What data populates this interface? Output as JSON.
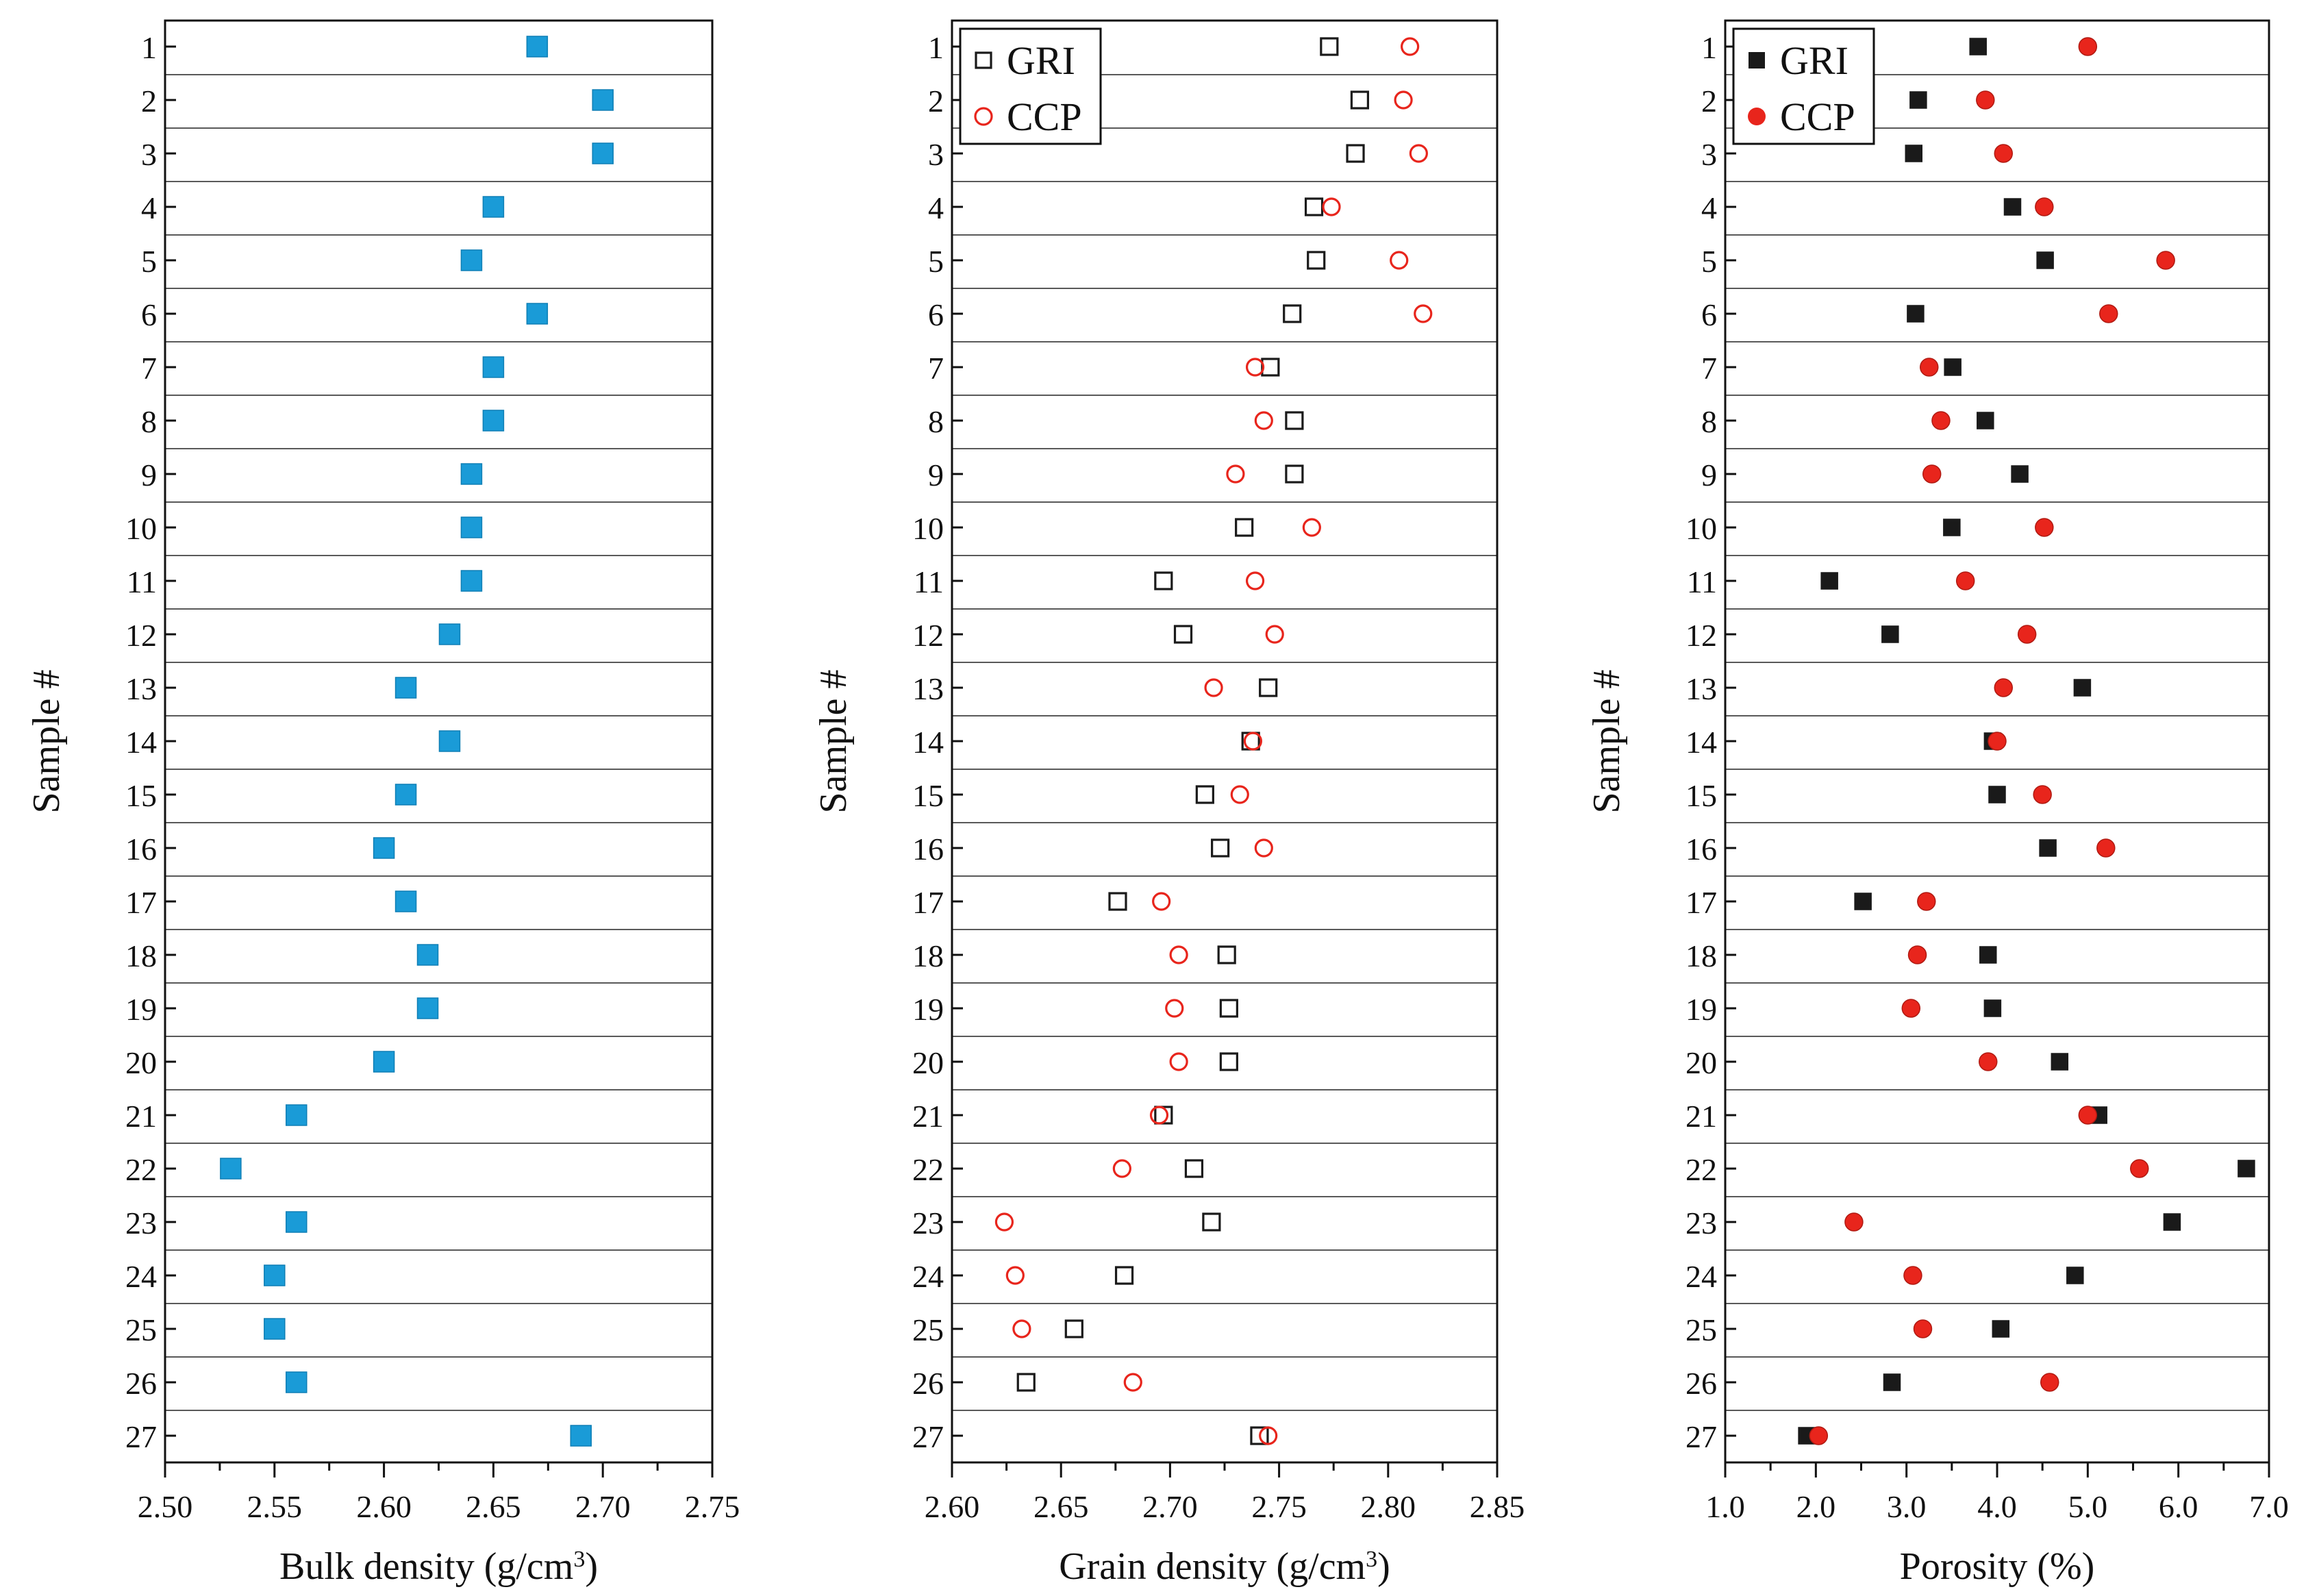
{
  "samples": [
    "1",
    "2",
    "3",
    "4",
    "5",
    "6",
    "7",
    "8",
    "9",
    "10",
    "11",
    "12",
    "13",
    "14",
    "15",
    "16",
    "17",
    "18",
    "19",
    "20",
    "21",
    "22",
    "23",
    "24",
    "25",
    "26",
    "27"
  ],
  "colors": {
    "bulk": "#1a9bd7",
    "gri": "#1a1a1a",
    "ccp": "#e8251c",
    "axis": "#111111"
  },
  "chart_data": [
    {
      "type": "scatter",
      "title": "",
      "xlabel": "Bulk density (g/cm³)",
      "ylabel": "Sample #",
      "xlim": [
        2.5,
        2.75
      ],
      "xticks": [
        "2.50",
        "2.55",
        "2.60",
        "2.65",
        "2.70",
        "2.75"
      ],
      "grid": "horizontal separators between samples",
      "legend": null,
      "series": [
        {
          "name": "Bulk density",
          "marker": "filled-square",
          "color": "#1a9bd7",
          "values": [
            2.67,
            2.7,
            2.7,
            2.65,
            2.64,
            2.67,
            2.65,
            2.65,
            2.64,
            2.64,
            2.64,
            2.63,
            2.61,
            2.63,
            2.61,
            2.6,
            2.61,
            2.62,
            2.62,
            2.6,
            2.56,
            2.53,
            2.56,
            2.55,
            2.55,
            2.56,
            2.69
          ]
        }
      ]
    },
    {
      "type": "scatter",
      "title": "",
      "xlabel": "Grain density (g/cm³)",
      "ylabel": "Sample #",
      "xlim": [
        2.6,
        2.85
      ],
      "xticks": [
        "2.60",
        "2.65",
        "2.70",
        "2.75",
        "2.80",
        "2.85"
      ],
      "grid": "horizontal separators between samples",
      "legend": "top-left",
      "series": [
        {
          "name": "GRI",
          "marker": "open-square",
          "color": "#1a1a1a",
          "values": [
            2.773,
            2.787,
            2.785,
            2.766,
            2.767,
            2.756,
            2.746,
            2.757,
            2.757,
            2.734,
            2.697,
            2.706,
            2.745,
            2.737,
            2.716,
            2.723,
            2.676,
            2.726,
            2.727,
            2.727,
            2.697,
            2.711,
            2.719,
            2.679,
            2.656,
            2.634,
            2.741
          ]
        },
        {
          "name": "CCP",
          "marker": "open-circle",
          "color": "#e8251c",
          "values": [
            2.81,
            2.807,
            2.814,
            2.774,
            2.805,
            2.816,
            2.739,
            2.743,
            2.73,
            2.765,
            2.739,
            2.748,
            2.72,
            2.738,
            2.732,
            2.743,
            2.696,
            2.704,
            2.702,
            2.704,
            2.695,
            2.678,
            2.624,
            2.629,
            2.632,
            2.683,
            2.745
          ]
        }
      ]
    },
    {
      "type": "scatter",
      "title": "",
      "xlabel": "Porosity (%)",
      "ylabel": "Sample #",
      "xlim": [
        1.0,
        7.0
      ],
      "xticks": [
        "1.0",
        "2.0",
        "3.0",
        "4.0",
        "5.0",
        "6.0",
        "7.0"
      ],
      "grid": "horizontal separators between samples",
      "legend": "top-left",
      "series": [
        {
          "name": "GRI",
          "marker": "filled-square",
          "color": "#1a1a1a",
          "values": [
            3.79,
            3.13,
            3.08,
            4.17,
            4.53,
            3.1,
            3.51,
            3.87,
            4.25,
            3.5,
            2.15,
            2.82,
            4.94,
            3.95,
            4.0,
            4.56,
            2.52,
            3.9,
            3.95,
            4.69,
            5.12,
            6.75,
            5.93,
            4.86,
            4.04,
            2.84,
            1.9
          ]
        },
        {
          "name": "CCP",
          "marker": "filled-circle",
          "color": "#e8251c",
          "values": [
            5.0,
            3.87,
            4.07,
            4.52,
            5.86,
            5.23,
            3.25,
            3.38,
            3.28,
            4.52,
            3.65,
            4.33,
            4.07,
            4.0,
            4.5,
            5.2,
            3.22,
            3.12,
            3.05,
            3.9,
            5.0,
            5.57,
            2.42,
            3.07,
            3.18,
            4.58,
            2.03
          ]
        }
      ]
    }
  ]
}
